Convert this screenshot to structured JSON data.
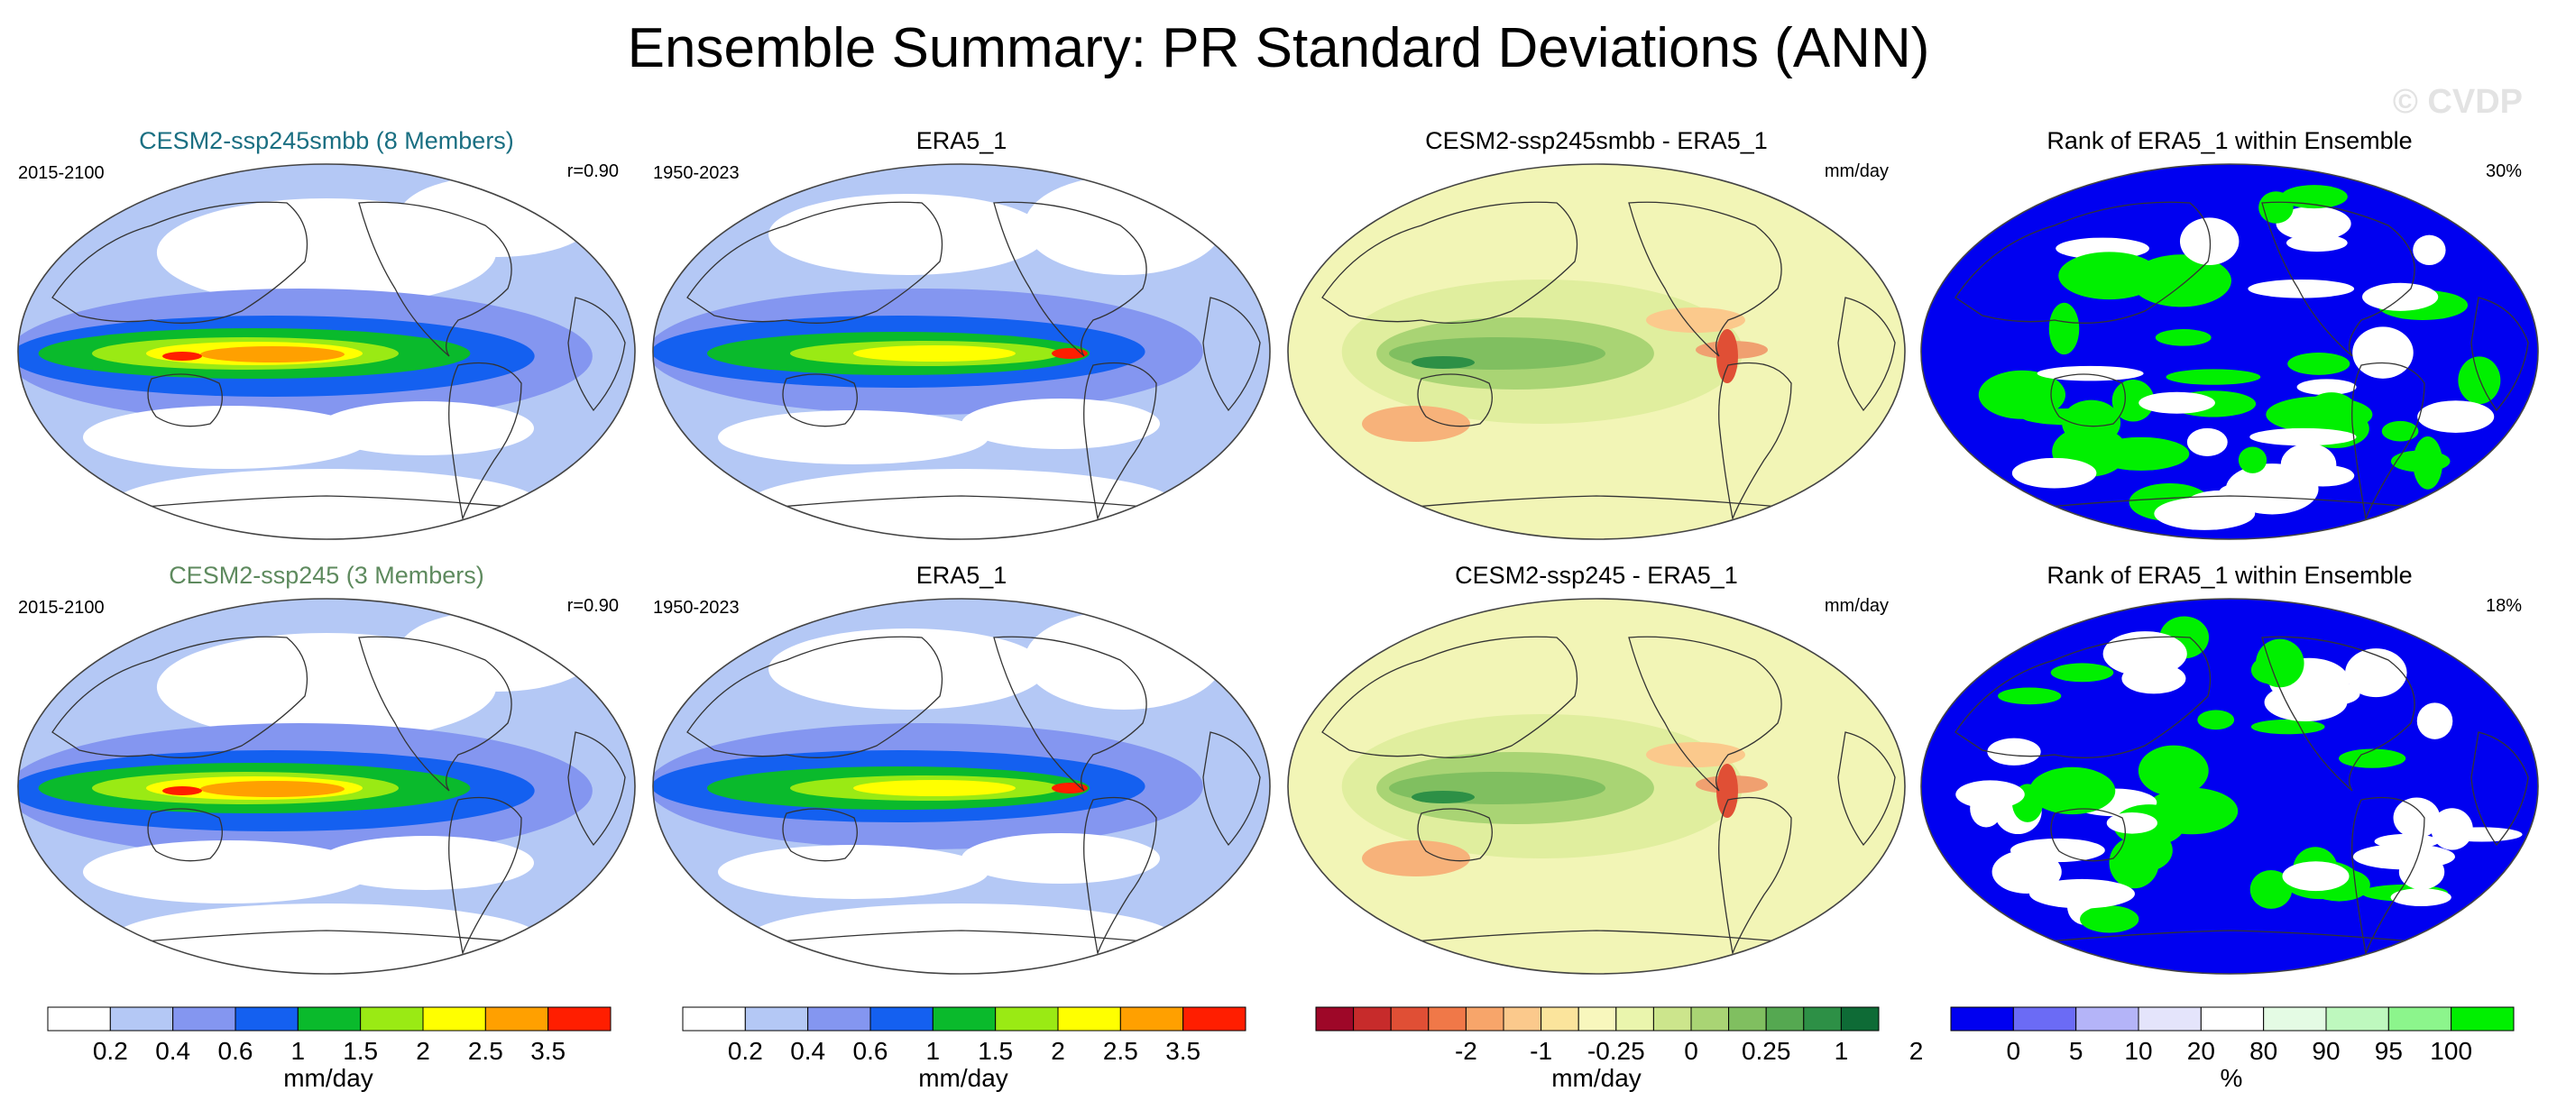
{
  "title": "Ensemble Summary: PR Standard Deviations (ANN)",
  "watermark": "© CVDP",
  "rows": [
    {
      "panels": [
        {
          "title": "CESM2-ssp245smbb (8 Members)",
          "left": "2015-2100",
          "right": "r=0.90",
          "kind": "std",
          "title_color": "#1a6f82"
        },
        {
          "title": "ERA5_1",
          "left": "1950-2023",
          "right": "",
          "kind": "obs",
          "title_color": "#000000"
        },
        {
          "title": "CESM2-ssp245smbb - ERA5_1",
          "left": "",
          "right": "mm/day",
          "kind": "diff",
          "title_color": "#000000"
        },
        {
          "title": "Rank of ERA5_1 within Ensemble",
          "left": "",
          "right": "30%",
          "kind": "rank",
          "title_color": "#000000"
        }
      ]
    },
    {
      "panels": [
        {
          "title": "CESM2-ssp245 (3 Members)",
          "left": "2015-2100",
          "right": "r=0.90",
          "kind": "std",
          "title_color": "#5e8a5e"
        },
        {
          "title": "ERA5_1",
          "left": "1950-2023",
          "right": "",
          "kind": "obs",
          "title_color": "#000000"
        },
        {
          "title": "CESM2-ssp245 - ERA5_1",
          "left": "",
          "right": "mm/day",
          "kind": "diff",
          "title_color": "#000000"
        },
        {
          "title": "Rank of ERA5_1 within Ensemble",
          "left": "",
          "right": "18%",
          "kind": "rank",
          "title_color": "#000000"
        }
      ]
    }
  ],
  "colorbars": [
    {
      "name": "std-colorbar-1",
      "colors": [
        "#ffffff",
        "#b4c8f5",
        "#8496f0",
        "#1460f0",
        "#0aba2c",
        "#9aea14",
        "#ffff00",
        "#ffa000",
        "#ff1e00"
      ],
      "labels": [
        "0.2",
        "0.4",
        "0.6",
        "1",
        "1.5",
        "2",
        "2.5",
        "3.5"
      ],
      "units": "mm/day"
    },
    {
      "name": "std-colorbar-2",
      "colors": [
        "#ffffff",
        "#b4c8f5",
        "#8496f0",
        "#1460f0",
        "#0aba2c",
        "#9aea14",
        "#ffff00",
        "#ffa000",
        "#ff1e00"
      ],
      "labels": [
        "0.2",
        "0.4",
        "0.6",
        "1",
        "1.5",
        "2",
        "2.5",
        "3.5"
      ],
      "units": "mm/day"
    },
    {
      "name": "diff-colorbar",
      "colors": [
        "#9e0728",
        "#c72b2b",
        "#e04f35",
        "#f07848",
        "#f7a56a",
        "#fbc98c",
        "#fbe49c",
        "#f8f7bd",
        "#eaf5ad",
        "#cce58c",
        "#a9d474",
        "#80bf60",
        "#55a851",
        "#2d9046",
        "#0e6b36"
      ],
      "labels": [
        "-2",
        "-1",
        "-0.25",
        "0",
        "0.25",
        "1",
        "2"
      ],
      "units": "mm/day"
    },
    {
      "name": "rank-colorbar",
      "colors": [
        "#0000f0",
        "#6b6bf5",
        "#b4b4f8",
        "#e4e4fb",
        "#ffffff",
        "#e4fbe4",
        "#bef8be",
        "#8cf58c",
        "#00f000"
      ],
      "labels": [
        "0",
        "5",
        "10",
        "20",
        "80",
        "90",
        "95",
        "100"
      ],
      "units": "%"
    }
  ]
}
